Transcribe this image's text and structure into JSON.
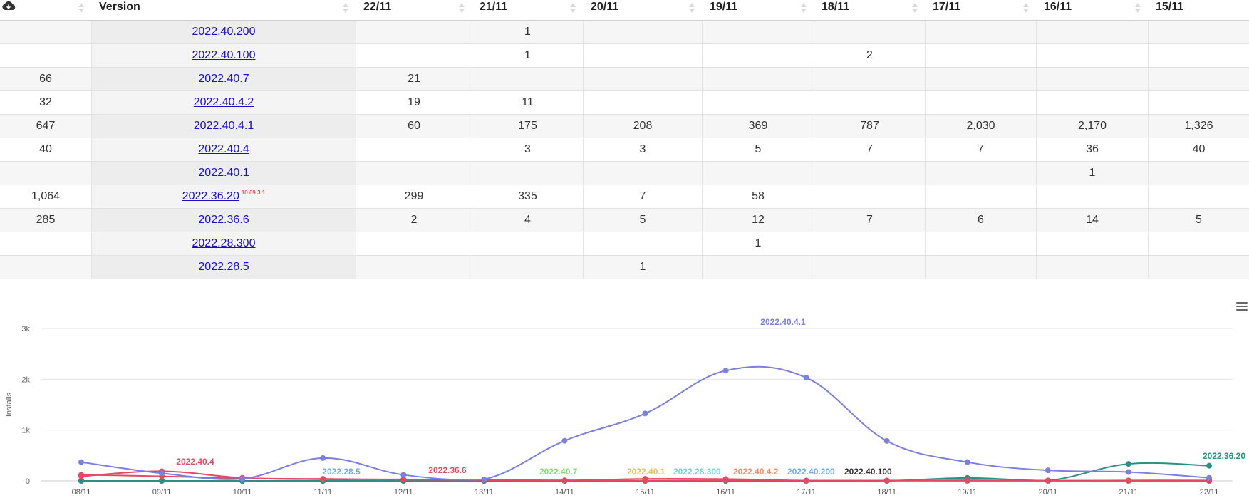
{
  "table": {
    "header": {
      "version_label": "Version",
      "dates": [
        "22/11",
        "21/11",
        "20/11",
        "19/11",
        "18/11",
        "17/11",
        "16/11",
        "15/11"
      ]
    },
    "rows": [
      {
        "total": "",
        "version": "2022.40.200",
        "note": "",
        "values": [
          "",
          "1",
          "",
          "",
          "",
          "",
          "",
          ""
        ]
      },
      {
        "total": "",
        "version": "2022.40.100",
        "note": "",
        "values": [
          "",
          "1",
          "",
          "",
          "2",
          "",
          "",
          ""
        ]
      },
      {
        "total": "66",
        "version": "2022.40.7",
        "note": "",
        "values": [
          "21",
          "",
          "",
          "",
          "",
          "",
          "",
          ""
        ]
      },
      {
        "total": "32",
        "version": "2022.40.4.2",
        "note": "",
        "values": [
          "19",
          "11",
          "",
          "",
          "",
          "",
          "",
          ""
        ]
      },
      {
        "total": "647",
        "version": "2022.40.4.1",
        "note": "",
        "values": [
          "60",
          "175",
          "208",
          "369",
          "787",
          "2,030",
          "2,170",
          "1,326"
        ]
      },
      {
        "total": "40",
        "version": "2022.40.4",
        "note": "",
        "values": [
          "",
          "3",
          "3",
          "5",
          "7",
          "7",
          "36",
          "40"
        ]
      },
      {
        "total": "",
        "version": "2022.40.1",
        "note": "",
        "values": [
          "",
          "",
          "",
          "",
          "",
          "",
          "1",
          ""
        ]
      },
      {
        "total": "1,064",
        "version": "2022.36.20",
        "note": "10.69.3.1",
        "values": [
          "299",
          "335",
          "7",
          "58",
          "",
          "",
          "",
          ""
        ]
      },
      {
        "total": "285",
        "version": "2022.36.6",
        "note": "",
        "values": [
          "2",
          "4",
          "5",
          "12",
          "7",
          "6",
          "14",
          "5"
        ]
      },
      {
        "total": "",
        "version": "2022.28.300",
        "note": "",
        "values": [
          "",
          "",
          "",
          "1",
          "",
          "",
          "",
          ""
        ]
      },
      {
        "total": "",
        "version": "2022.28.5",
        "note": "",
        "values": [
          "",
          "",
          "1",
          "",
          "",
          "",
          "",
          ""
        ]
      }
    ]
  },
  "icons": {
    "download": "cloud-download-icon",
    "sort": "sort-arrows-icon",
    "menu": "hamburger-menu-icon"
  },
  "chart_data": {
    "type": "line",
    "title": "",
    "xlabel": "",
    "ylabel": "Installs",
    "ylim": [
      0,
      3000
    ],
    "yticks": [
      0,
      1000,
      2000,
      3000
    ],
    "ytick_labels": [
      "0",
      "1k",
      "2k",
      "3k"
    ],
    "grid": true,
    "categories": [
      "08/11",
      "09/11",
      "10/11",
      "11/11",
      "12/11",
      "13/11",
      "14/11",
      "15/11",
      "16/11",
      "17/11",
      "18/11",
      "19/11",
      "20/11",
      "21/11",
      "22/11"
    ],
    "series": [
      {
        "name": "2022.40.4.1",
        "color": "#7b7fe0",
        "values": [
          370,
          150,
          40,
          450,
          120,
          30,
          790,
          1326,
          2170,
          2030,
          787,
          369,
          208,
          175,
          60
        ]
      },
      {
        "name": "2022.40.4",
        "color": "#e34a62",
        "values": [
          90,
          190,
          60,
          30,
          30,
          15,
          10,
          40,
          36,
          7,
          7,
          5,
          3,
          3,
          0
        ]
      },
      {
        "name": "2022.36.6",
        "color": "#e34a62",
        "values": [
          120,
          90,
          50,
          40,
          25,
          20,
          10,
          5,
          14,
          6,
          7,
          12,
          5,
          4,
          2
        ]
      },
      {
        "name": "2022.36.20",
        "color": "#2b8f84",
        "values": [
          0,
          0,
          0,
          0,
          0,
          0,
          0,
          0,
          0,
          0,
          0,
          58,
          7,
          335,
          299
        ]
      },
      {
        "name": "2022.28.5",
        "color": "#6aaee8",
        "values": [
          0,
          0,
          0,
          0,
          0,
          0,
          0,
          0,
          0,
          0,
          0,
          0,
          1,
          0,
          0
        ]
      },
      {
        "name": "2022.40.7",
        "color": "#7ee06a",
        "values": [
          0,
          0,
          0,
          0,
          0,
          0,
          0,
          0,
          0,
          0,
          0,
          0,
          0,
          0,
          21
        ]
      },
      {
        "name": "2022.40.1",
        "color": "#e8c24a",
        "values": [
          0,
          0,
          0,
          0,
          0,
          0,
          0,
          0,
          1,
          0,
          0,
          0,
          0,
          0,
          0
        ]
      },
      {
        "name": "2022.28.300",
        "color": "#6fd6cf",
        "values": [
          0,
          0,
          0,
          0,
          0,
          0,
          0,
          0,
          0,
          0,
          0,
          1,
          0,
          0,
          0
        ]
      },
      {
        "name": "2022.40.4.2",
        "color": "#f29061",
        "values": [
          0,
          0,
          0,
          0,
          0,
          0,
          0,
          0,
          0,
          0,
          0,
          0,
          0,
          11,
          19
        ]
      },
      {
        "name": "2022.40.200",
        "color": "#6aaee8",
        "values": [
          0,
          0,
          0,
          0,
          0,
          0,
          0,
          0,
          0,
          0,
          0,
          0,
          0,
          1,
          0
        ]
      },
      {
        "name": "2022.40.100",
        "color": "#333333",
        "values": [
          0,
          0,
          0,
          0,
          0,
          0,
          0,
          0,
          0,
          0,
          2,
          0,
          0,
          1,
          0
        ]
      }
    ],
    "series_labels": [
      {
        "text": "2022.40.4.1",
        "color": "#7b7fe0"
      },
      {
        "text": "2022.40.4",
        "color": "#e34a62"
      },
      {
        "text": "2022.28.5",
        "color": "#6aaee8"
      },
      {
        "text": "2022.36.6",
        "color": "#e34a62"
      },
      {
        "text": "2022.40.7",
        "color": "#7ee06a"
      },
      {
        "text": "2022.40.1",
        "color": "#e8c24a"
      },
      {
        "text": "2022.28.300",
        "color": "#6fd6cf"
      },
      {
        "text": "2022.40.4.2",
        "color": "#f29061"
      },
      {
        "text": "2022.40.200",
        "color": "#6aaee8"
      },
      {
        "text": "2022.40.100",
        "color": "#333333"
      },
      {
        "text": "2022.36.20",
        "color": "#2b8f84"
      }
    ]
  }
}
